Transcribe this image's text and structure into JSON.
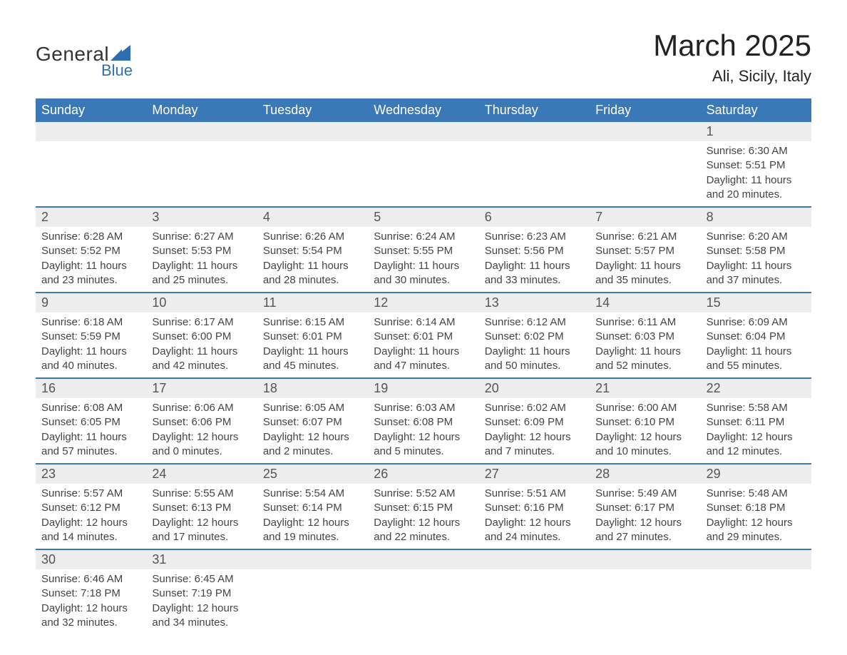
{
  "logo": {
    "text_main": "General",
    "text_sub": "Blue",
    "main_color": "#333333",
    "sub_color": "#2f6faf",
    "shape_color": "#2f6faf"
  },
  "title": {
    "month_year": "March 2025",
    "location": "Ali, Sicily, Italy"
  },
  "colors": {
    "header_bg": "#3b78b8",
    "header_text": "#ffffff",
    "daynum_bg": "#ededed",
    "week_divider": "#3b78b8",
    "body_text": "#444444",
    "page_bg": "#ffffff"
  },
  "fonts": {
    "title_size_pt": 42,
    "location_size_pt": 22,
    "header_cell_size_pt": 18,
    "daynum_size_pt": 18,
    "body_size_pt": 15
  },
  "calendar": {
    "type": "table",
    "columns": [
      "Sunday",
      "Monday",
      "Tuesday",
      "Wednesday",
      "Thursday",
      "Friday",
      "Saturday"
    ],
    "weeks": [
      [
        null,
        null,
        null,
        null,
        null,
        null,
        {
          "day": "1",
          "sunrise": "Sunrise: 6:30 AM",
          "sunset": "Sunset: 5:51 PM",
          "daylight1": "Daylight: 11 hours",
          "daylight2": "and 20 minutes."
        }
      ],
      [
        {
          "day": "2",
          "sunrise": "Sunrise: 6:28 AM",
          "sunset": "Sunset: 5:52 PM",
          "daylight1": "Daylight: 11 hours",
          "daylight2": "and 23 minutes."
        },
        {
          "day": "3",
          "sunrise": "Sunrise: 6:27 AM",
          "sunset": "Sunset: 5:53 PM",
          "daylight1": "Daylight: 11 hours",
          "daylight2": "and 25 minutes."
        },
        {
          "day": "4",
          "sunrise": "Sunrise: 6:26 AM",
          "sunset": "Sunset: 5:54 PM",
          "daylight1": "Daylight: 11 hours",
          "daylight2": "and 28 minutes."
        },
        {
          "day": "5",
          "sunrise": "Sunrise: 6:24 AM",
          "sunset": "Sunset: 5:55 PM",
          "daylight1": "Daylight: 11 hours",
          "daylight2": "and 30 minutes."
        },
        {
          "day": "6",
          "sunrise": "Sunrise: 6:23 AM",
          "sunset": "Sunset: 5:56 PM",
          "daylight1": "Daylight: 11 hours",
          "daylight2": "and 33 minutes."
        },
        {
          "day": "7",
          "sunrise": "Sunrise: 6:21 AM",
          "sunset": "Sunset: 5:57 PM",
          "daylight1": "Daylight: 11 hours",
          "daylight2": "and 35 minutes."
        },
        {
          "day": "8",
          "sunrise": "Sunrise: 6:20 AM",
          "sunset": "Sunset: 5:58 PM",
          "daylight1": "Daylight: 11 hours",
          "daylight2": "and 37 minutes."
        }
      ],
      [
        {
          "day": "9",
          "sunrise": "Sunrise: 6:18 AM",
          "sunset": "Sunset: 5:59 PM",
          "daylight1": "Daylight: 11 hours",
          "daylight2": "and 40 minutes."
        },
        {
          "day": "10",
          "sunrise": "Sunrise: 6:17 AM",
          "sunset": "Sunset: 6:00 PM",
          "daylight1": "Daylight: 11 hours",
          "daylight2": "and 42 minutes."
        },
        {
          "day": "11",
          "sunrise": "Sunrise: 6:15 AM",
          "sunset": "Sunset: 6:01 PM",
          "daylight1": "Daylight: 11 hours",
          "daylight2": "and 45 minutes."
        },
        {
          "day": "12",
          "sunrise": "Sunrise: 6:14 AM",
          "sunset": "Sunset: 6:01 PM",
          "daylight1": "Daylight: 11 hours",
          "daylight2": "and 47 minutes."
        },
        {
          "day": "13",
          "sunrise": "Sunrise: 6:12 AM",
          "sunset": "Sunset: 6:02 PM",
          "daylight1": "Daylight: 11 hours",
          "daylight2": "and 50 minutes."
        },
        {
          "day": "14",
          "sunrise": "Sunrise: 6:11 AM",
          "sunset": "Sunset: 6:03 PM",
          "daylight1": "Daylight: 11 hours",
          "daylight2": "and 52 minutes."
        },
        {
          "day": "15",
          "sunrise": "Sunrise: 6:09 AM",
          "sunset": "Sunset: 6:04 PM",
          "daylight1": "Daylight: 11 hours",
          "daylight2": "and 55 minutes."
        }
      ],
      [
        {
          "day": "16",
          "sunrise": "Sunrise: 6:08 AM",
          "sunset": "Sunset: 6:05 PM",
          "daylight1": "Daylight: 11 hours",
          "daylight2": "and 57 minutes."
        },
        {
          "day": "17",
          "sunrise": "Sunrise: 6:06 AM",
          "sunset": "Sunset: 6:06 PM",
          "daylight1": "Daylight: 12 hours",
          "daylight2": "and 0 minutes."
        },
        {
          "day": "18",
          "sunrise": "Sunrise: 6:05 AM",
          "sunset": "Sunset: 6:07 PM",
          "daylight1": "Daylight: 12 hours",
          "daylight2": "and 2 minutes."
        },
        {
          "day": "19",
          "sunrise": "Sunrise: 6:03 AM",
          "sunset": "Sunset: 6:08 PM",
          "daylight1": "Daylight: 12 hours",
          "daylight2": "and 5 minutes."
        },
        {
          "day": "20",
          "sunrise": "Sunrise: 6:02 AM",
          "sunset": "Sunset: 6:09 PM",
          "daylight1": "Daylight: 12 hours",
          "daylight2": "and 7 minutes."
        },
        {
          "day": "21",
          "sunrise": "Sunrise: 6:00 AM",
          "sunset": "Sunset: 6:10 PM",
          "daylight1": "Daylight: 12 hours",
          "daylight2": "and 10 minutes."
        },
        {
          "day": "22",
          "sunrise": "Sunrise: 5:58 AM",
          "sunset": "Sunset: 6:11 PM",
          "daylight1": "Daylight: 12 hours",
          "daylight2": "and 12 minutes."
        }
      ],
      [
        {
          "day": "23",
          "sunrise": "Sunrise: 5:57 AM",
          "sunset": "Sunset: 6:12 PM",
          "daylight1": "Daylight: 12 hours",
          "daylight2": "and 14 minutes."
        },
        {
          "day": "24",
          "sunrise": "Sunrise: 5:55 AM",
          "sunset": "Sunset: 6:13 PM",
          "daylight1": "Daylight: 12 hours",
          "daylight2": "and 17 minutes."
        },
        {
          "day": "25",
          "sunrise": "Sunrise: 5:54 AM",
          "sunset": "Sunset: 6:14 PM",
          "daylight1": "Daylight: 12 hours",
          "daylight2": "and 19 minutes."
        },
        {
          "day": "26",
          "sunrise": "Sunrise: 5:52 AM",
          "sunset": "Sunset: 6:15 PM",
          "daylight1": "Daylight: 12 hours",
          "daylight2": "and 22 minutes."
        },
        {
          "day": "27",
          "sunrise": "Sunrise: 5:51 AM",
          "sunset": "Sunset: 6:16 PM",
          "daylight1": "Daylight: 12 hours",
          "daylight2": "and 24 minutes."
        },
        {
          "day": "28",
          "sunrise": "Sunrise: 5:49 AM",
          "sunset": "Sunset: 6:17 PM",
          "daylight1": "Daylight: 12 hours",
          "daylight2": "and 27 minutes."
        },
        {
          "day": "29",
          "sunrise": "Sunrise: 5:48 AM",
          "sunset": "Sunset: 6:18 PM",
          "daylight1": "Daylight: 12 hours",
          "daylight2": "and 29 minutes."
        }
      ],
      [
        {
          "day": "30",
          "sunrise": "Sunrise: 6:46 AM",
          "sunset": "Sunset: 7:18 PM",
          "daylight1": "Daylight: 12 hours",
          "daylight2": "and 32 minutes."
        },
        {
          "day": "31",
          "sunrise": "Sunrise: 6:45 AM",
          "sunset": "Sunset: 7:19 PM",
          "daylight1": "Daylight: 12 hours",
          "daylight2": "and 34 minutes."
        },
        null,
        null,
        null,
        null,
        null
      ]
    ]
  }
}
